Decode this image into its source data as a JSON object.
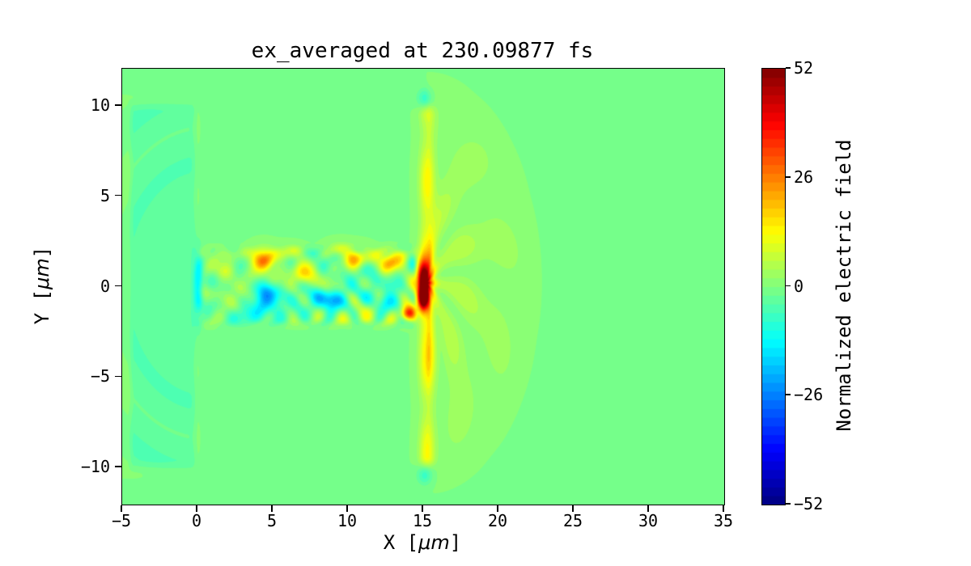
{
  "chart_data": {
    "type": "heatmap",
    "title": "ex_averaged at 230.09877 fs",
    "xlabel_parts": {
      "pre": "X [",
      "mu": "μm",
      "post": "]"
    },
    "ylabel_parts": {
      "pre": "Y [",
      "mu": "μm",
      "post": "]"
    },
    "colorbar_label": "Normalized electric field",
    "colormap": "jet",
    "levels": 50,
    "clim": [
      -52,
      52
    ],
    "xlim": [
      -5,
      35
    ],
    "ylim": [
      -12.05,
      12.05
    ],
    "x_ticks": [
      -5,
      0,
      5,
      10,
      15,
      20,
      25,
      30,
      35
    ],
    "x_tick_labels": [
      "−5",
      "0",
      "5",
      "10",
      "15",
      "20",
      "25",
      "30",
      "35"
    ],
    "y_ticks": [
      10,
      5,
      0,
      -5,
      -10
    ],
    "y_tick_labels": [
      "10",
      "5",
      "0",
      "−5",
      "−10"
    ],
    "colorbar_ticks": [
      52,
      26,
      0,
      -26,
      -52
    ],
    "colorbar_tick_labels": [
      "52",
      "26",
      "0",
      "−26",
      "−52"
    ],
    "features": [
      "uniform background field ~0 (green)",
      "slightly negative slab (teal) from x=-4.6 to x=0, |y|<10.3 with faint arc fringes",
      "thin blue negative filament at x=0 near y=0",
      "turbulent mixed positive/negative channel for 0<x<15, |y|<2.5",
      "strong positive peak (~+52, dark red) at x=15, y~0",
      "positive vertical sheath (orange/yellow) at x=15 spanning |y|<10",
      "feathered positive emission fan (yellow-green) from x=15 out to x~23"
    ],
    "field": {
      "background": -0.05,
      "slab": {
        "x0": -4.65,
        "x1": 0.05,
        "y0": -10.35,
        "y1": 10.45,
        "value": -3.3
      },
      "left_arcs": {
        "cx": 0.4,
        "cy": 0.2,
        "amp": 1.3,
        "freq": 1.9,
        "phase": 0.8,
        "r_center": 7.5,
        "r_width": 4.5,
        "x_max": 0.3
      },
      "blue_line": {
        "x": 0.05,
        "sx": 0.3,
        "sy": 1.9,
        "amp": -15
      },
      "band": {
        "x0": -0.3,
        "x1": 14.8,
        "y_half": 2.45,
        "amp": 10,
        "amp2": 5
      },
      "blobs": [
        [
          1.8,
          0.9,
          0.6,
          0.45,
          9
        ],
        [
          3.0,
          -1.6,
          0.8,
          0.5,
          -10
        ],
        [
          4.4,
          1.5,
          0.75,
          0.55,
          26
        ],
        [
          4.7,
          -0.7,
          1.0,
          0.75,
          -24
        ],
        [
          6.0,
          1.8,
          0.9,
          0.4,
          10
        ],
        [
          7.3,
          0.7,
          0.8,
          0.5,
          13
        ],
        [
          8.6,
          -0.8,
          0.9,
          0.65,
          -22
        ],
        [
          9.5,
          2.0,
          0.8,
          0.4,
          9
        ],
        [
          10.7,
          1.6,
          0.8,
          0.5,
          14
        ],
        [
          11.8,
          -0.4,
          0.8,
          0.55,
          -13
        ],
        [
          12.8,
          1.3,
          0.7,
          0.5,
          18
        ],
        [
          13.3,
          -0.7,
          0.55,
          0.5,
          -14
        ],
        [
          14.0,
          -1.5,
          0.45,
          0.4,
          36
        ],
        [
          15.0,
          0.35,
          0.4,
          1.0,
          48
        ],
        [
          15.0,
          -0.7,
          0.36,
          0.62,
          44
        ],
        [
          15.1,
          10.45,
          0.5,
          0.5,
          -7
        ],
        [
          15.1,
          -10.45,
          0.5,
          0.5,
          -7
        ]
      ],
      "stripe": {
        "x": 15.25,
        "sx": 0.5,
        "y_half": 10.3,
        "amp_base": 13,
        "amp_peak": 9,
        "peak_sy": 3.5
      },
      "fan": {
        "cx": 15.2,
        "cy": 0.2,
        "a": 7.7,
        "b": 11.7,
        "amp": 8.5,
        "streaks": 9
      }
    }
  }
}
